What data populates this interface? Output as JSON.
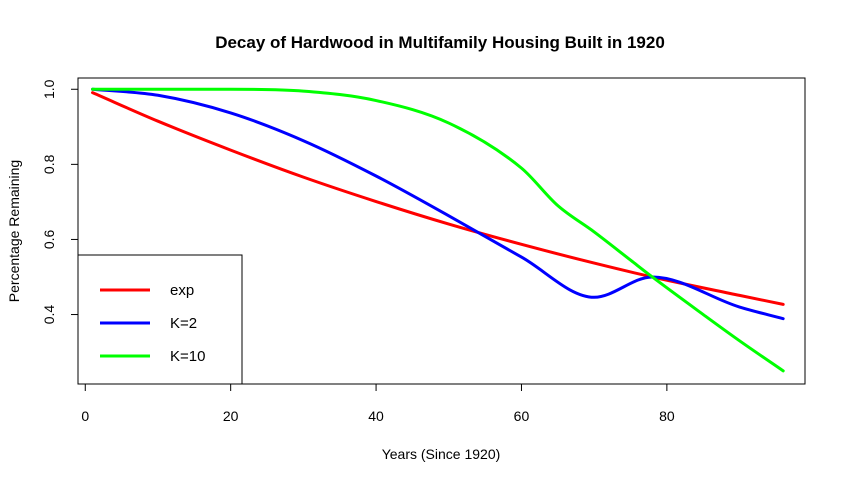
{
  "chart_data": {
    "type": "line",
    "title": "Decay of Hardwood in Multifamily Housing Built in 1920",
    "xlabel": "Years (Since 1920)",
    "ylabel": "Percentage Remaining",
    "xlim": [
      -1,
      99
    ],
    "ylim": [
      0.215,
      1.03
    ],
    "xticks": [
      0,
      20,
      40,
      60,
      80
    ],
    "yticks": [
      0.4,
      0.6,
      0.8,
      1.0
    ],
    "xtick_labels": [
      "0",
      "20",
      "40",
      "60",
      "80"
    ],
    "ytick_labels": [
      "0.4",
      "0.6",
      "0.8",
      "1.0"
    ],
    "grid": false,
    "legend_position": "bottom-left",
    "series": [
      {
        "name": "exp",
        "color": "#ff0000",
        "x": [
          1,
          10,
          20,
          30,
          40,
          50,
          60,
          70,
          78,
          90,
          96
        ],
        "y": [
          0.991,
          0.915,
          0.838,
          0.766,
          0.701,
          0.641,
          0.587,
          0.537,
          0.5,
          0.451,
          0.427
        ]
      },
      {
        "name": "K=2",
        "color": "#0000ff",
        "x": [
          1,
          10,
          20,
          30,
          40,
          50,
          60,
          70,
          78,
          90,
          96
        ],
        "y": [
          1.0,
          0.984,
          0.937,
          0.863,
          0.769,
          0.663,
          0.553,
          0.446,
          0.5,
          0.42,
          0.389
        ]
      },
      {
        "name": "K=10",
        "color": "#00ff00",
        "x": [
          1,
          10,
          20,
          30,
          40,
          50,
          60,
          65,
          70,
          75,
          78,
          85,
          90,
          96
        ],
        "y": [
          1.0,
          1.0,
          1.0,
          0.995,
          0.97,
          0.91,
          0.79,
          0.69,
          0.62,
          0.545,
          0.5,
          0.4,
          0.33,
          0.25
        ]
      }
    ]
  }
}
